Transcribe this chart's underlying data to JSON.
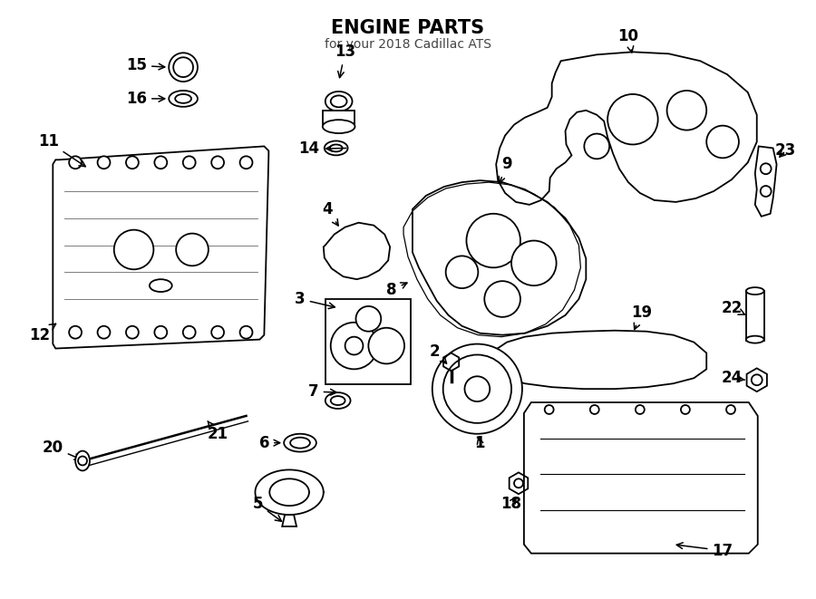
{
  "title": "ENGINE PARTS",
  "subtitle": "for your 2018 Cadillac ATS",
  "bg_color": "#ffffff",
  "line_color": "#000000",
  "fig_width": 9.0,
  "fig_height": 6.61,
  "dpi": 100
}
